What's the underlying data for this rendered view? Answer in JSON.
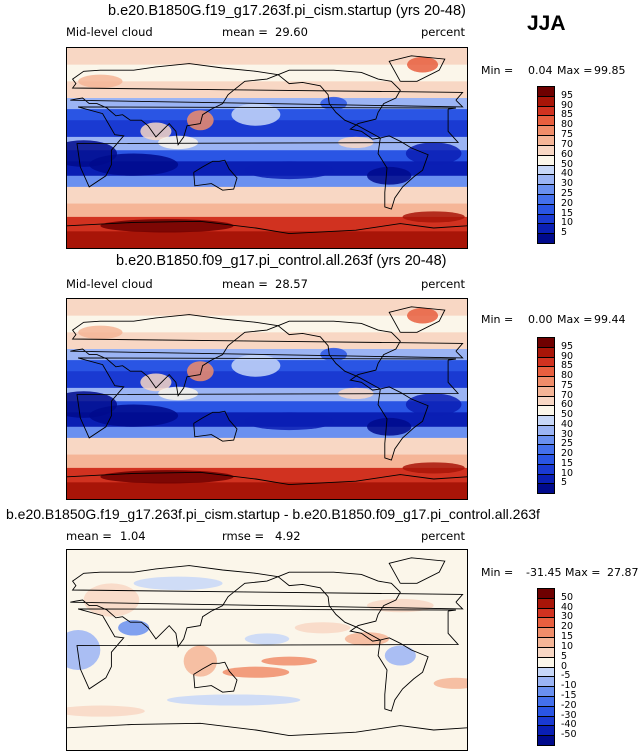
{
  "season": "JJA",
  "chart_data": [
    {
      "type": "heatmap",
      "title": "b.e20.B1850G.f19_g17.263f.pi_cism.startup (yrs 20-48)",
      "variable": "Mid-level cloud",
      "stat_label": "mean =",
      "stat_value": "29.60",
      "units": "percent",
      "min_label": "Min =",
      "min_value": "0.04",
      "max_label": "Max =",
      "max_value": "99.85",
      "levels": [
        5,
        10,
        15,
        20,
        25,
        30,
        40,
        50,
        60,
        70,
        75,
        80,
        85,
        90,
        95
      ],
      "colors": [
        "#000a8c",
        "#0a1fb4",
        "#1a3ad2",
        "#2a55e4",
        "#4470ec",
        "#6a90f0",
        "#9bb4f4",
        "#c7d7f8",
        "#fbf6ea",
        "#f8d7c4",
        "#f5b597",
        "#f08d6a",
        "#e85f3f",
        "#d13220",
        "#a81508",
        "#6e0000"
      ]
    },
    {
      "type": "heatmap",
      "title": "b.e20.B1850.f09_g17.pi_control.all.263f (yrs 20-48)",
      "variable": "Mid-level cloud",
      "stat_label": "mean =",
      "stat_value": "28.57",
      "units": "percent",
      "min_label": "Min =",
      "min_value": "0.00",
      "max_label": "Max =",
      "max_value": "99.44",
      "levels": [
        5,
        10,
        15,
        20,
        25,
        30,
        40,
        50,
        60,
        70,
        75,
        80,
        85,
        90,
        95
      ],
      "colors": [
        "#000a8c",
        "#0a1fb4",
        "#1a3ad2",
        "#2a55e4",
        "#4470ec",
        "#6a90f0",
        "#9bb4f4",
        "#c7d7f8",
        "#fbf6ea",
        "#f8d7c4",
        "#f5b597",
        "#f08d6a",
        "#e85f3f",
        "#d13220",
        "#a81508",
        "#6e0000"
      ]
    },
    {
      "type": "heatmap",
      "title": "b.e20.B1850G.f19_g17.263f.pi_cism.startup - b.e20.B1850.f09_g17.pi_control.all.263f",
      "variable": "",
      "stat_label": "mean =",
      "stat_value": "1.04",
      "stat2_label": "rmse =",
      "stat2_value": "4.92",
      "units": "percent",
      "min_label": "Min =",
      "min_value": "-31.45",
      "max_label": "Max =",
      "max_value": "27.87",
      "levels": [
        -50,
        -40,
        -30,
        -20,
        -15,
        -10,
        -5,
        0,
        5,
        10,
        15,
        20,
        30,
        40,
        50
      ],
      "colors": [
        "#000a8c",
        "#0a1fb4",
        "#1a3ad2",
        "#2a55e4",
        "#4470ec",
        "#6a90f0",
        "#9bb4f4",
        "#c7d7f8",
        "#fbf6ea",
        "#f8d7c4",
        "#f5b597",
        "#f08d6a",
        "#e85f3f",
        "#d13220",
        "#a81508",
        "#6e0000"
      ]
    }
  ]
}
